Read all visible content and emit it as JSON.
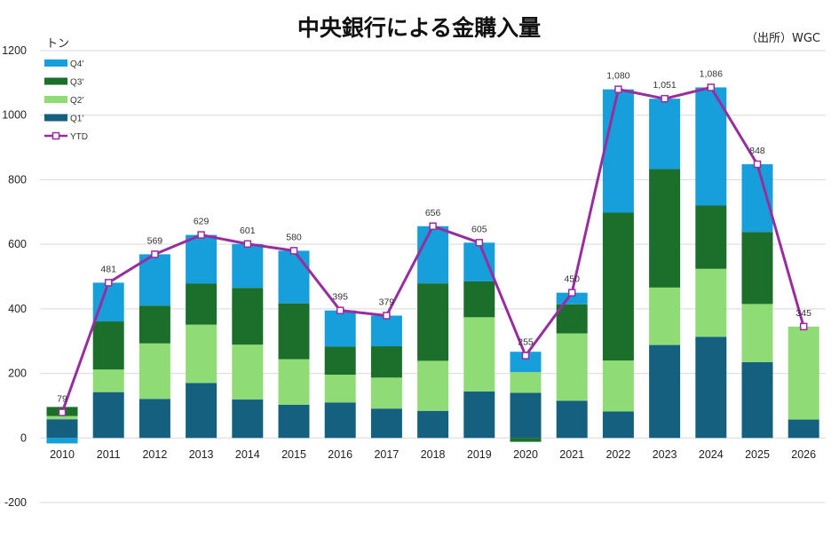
{
  "chart_data": {
    "type": "bar",
    "title": "中央銀行による金購入量",
    "source": "（出所）WGC",
    "ylabel": "トン",
    "ylim": [
      -200,
      1200
    ],
    "yticks": [
      -200,
      0,
      200,
      400,
      600,
      800,
      1000,
      1200
    ],
    "grid": true,
    "legend_position": "top-left",
    "categories": [
      "2010",
      "2011",
      "2012",
      "2013",
      "2014",
      "2015",
      "2016",
      "2017",
      "2018",
      "2019",
      "2020",
      "2021",
      "2022",
      "2023",
      "2024",
      "2025",
      "2026"
    ],
    "series": [
      {
        "name": "Q1'",
        "color": "#16607f",
        "values": [
          58,
          142,
          121,
          170,
          119,
          103,
          110,
          91,
          84,
          144,
          140,
          115,
          82,
          288,
          313,
          235,
          57
        ]
      },
      {
        "name": "Q2'",
        "color": "#8fdb75",
        "values": [
          10,
          70,
          172,
          181,
          170,
          141,
          86,
          96,
          155,
          230,
          64,
          209,
          158,
          178,
          211,
          180,
          288
        ]
      },
      {
        "name": "Q3'",
        "color": "#1b6f2a",
        "values": [
          28,
          149,
          117,
          127,
          176,
          173,
          87,
          97,
          240,
          111,
          -12,
          90,
          458,
          367,
          196,
          223,
          0
        ]
      },
      {
        "name": "Q4'",
        "color": "#169fda",
        "values": [
          -17,
          120,
          159,
          151,
          136,
          163,
          112,
          95,
          177,
          120,
          63,
          36,
          382,
          218,
          366,
          210,
          0
        ]
      }
    ],
    "line": {
      "name": "YTD",
      "color": "#992d9f",
      "values": [
        79,
        481,
        569,
        629,
        601,
        580,
        395,
        379,
        656,
        605,
        255,
        450,
        1080,
        1051,
        1086,
        848,
        345
      ],
      "labels": [
        "79",
        "481",
        "569",
        "629",
        "601",
        "580",
        "395",
        "379",
        "656",
        "605",
        "255",
        "450",
        "1,080",
        "1,051",
        "1,086",
        "848",
        "345"
      ]
    },
    "legend_order": [
      "Q4'",
      "Q3'",
      "Q2'",
      "Q1'",
      "YTD"
    ]
  }
}
